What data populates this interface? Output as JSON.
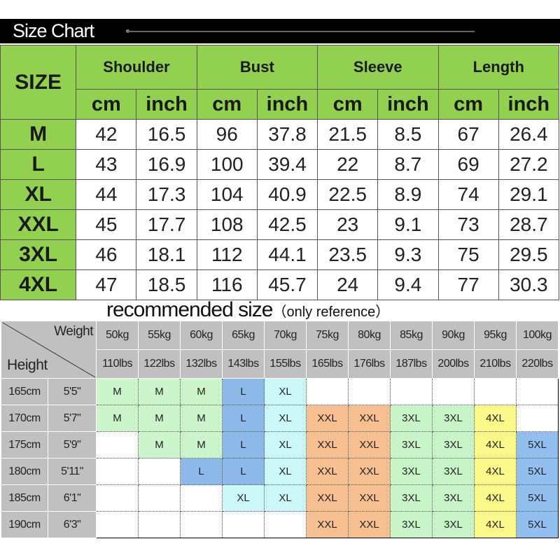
{
  "title": "Size Chart",
  "size_table": {
    "size_label": "SIZE",
    "groups": [
      "Shoulder",
      "Bust",
      "Sleeve",
      "Length"
    ],
    "units": [
      "cm",
      "inch"
    ],
    "rows": [
      {
        "size": "M",
        "values": [
          "42",
          "16.5",
          "96",
          "37.8",
          "21.5",
          "8.5",
          "67",
          "26.4"
        ]
      },
      {
        "size": "L",
        "values": [
          "43",
          "16.9",
          "100",
          "39.4",
          "22",
          "8.7",
          "69",
          "27.2"
        ]
      },
      {
        "size": "XL",
        "values": [
          "44",
          "17.3",
          "104",
          "40.9",
          "22.5",
          "8.9",
          "74",
          "29.1"
        ]
      },
      {
        "size": "XXL",
        "values": [
          "45",
          "17.7",
          "108",
          "42.5",
          "23",
          "9.1",
          "73",
          "28.7"
        ]
      },
      {
        "size": "3XL",
        "values": [
          "46",
          "18.1",
          "112",
          "44.1",
          "23.5",
          "9.3",
          "75",
          "29.5"
        ]
      },
      {
        "size": "4XL",
        "values": [
          "47",
          "18.5",
          "116",
          "45.7",
          "24",
          "9.4",
          "77",
          "30.3"
        ]
      }
    ]
  },
  "recommended": {
    "title": "recommended size",
    "subtitle": "（only reference）",
    "weight_label": "Weight",
    "height_label": "Height",
    "weights_kg": [
      "50kg",
      "55kg",
      "60kg",
      "65kg",
      "70kg",
      "75kg",
      "80kg",
      "85kg",
      "90kg",
      "95kg",
      "100kg"
    ],
    "weights_lbs": [
      "110lbs",
      "122lbs",
      "132lbs",
      "143lbs",
      "155lbs",
      "165lbs",
      "176lbs",
      "187lbs",
      "200lbs",
      "210lbs",
      "220lbs"
    ],
    "rows": [
      {
        "cm": "165cm",
        "ft": "5'5\"",
        "sizes": [
          "M",
          "M",
          "M",
          "L",
          "XL",
          "",
          "",
          "",
          "",
          "",
          ""
        ]
      },
      {
        "cm": "170cm",
        "ft": "5'7\"",
        "sizes": [
          "M",
          "M",
          "M",
          "L",
          "XL",
          "XXL",
          "XXL",
          "3XL",
          "3XL",
          "4XL",
          ""
        ]
      },
      {
        "cm": "175cm",
        "ft": "5'9\"",
        "sizes": [
          "",
          "M",
          "M",
          "L",
          "XL",
          "XXL",
          "XXL",
          "3XL",
          "3XL",
          "4XL",
          "5XL"
        ]
      },
      {
        "cm": "180cm",
        "ft": "5'11\"",
        "sizes": [
          "",
          "",
          "L",
          "L",
          "XL",
          "XXL",
          "XXL",
          "3XL",
          "3XL",
          "4XL",
          "5XL"
        ]
      },
      {
        "cm": "185cm",
        "ft": "6'1\"",
        "sizes": [
          "",
          "",
          "",
          "XL",
          "XL",
          "XXL",
          "XXL",
          "3XL",
          "3XL",
          "4XL",
          "5XL"
        ]
      },
      {
        "cm": "190cm",
        "ft": "6'3\"",
        "sizes": [
          "",
          "",
          "",
          "",
          "",
          "XXL",
          "XXL",
          "3XL",
          "3XL",
          "4XL",
          "5XL"
        ]
      }
    ],
    "size_colors": {
      "M": "#ccf5cc",
      "L": "#8db8ea",
      "XL": "#ccf8fa",
      "XXL": "#f8bf90",
      "3XL": "#c8f5c8",
      "4XL": "#fbf88a",
      "5XL": "#93bff0"
    }
  },
  "colors": {
    "header_green": "#92d050",
    "gray": "#c0c0c0"
  }
}
